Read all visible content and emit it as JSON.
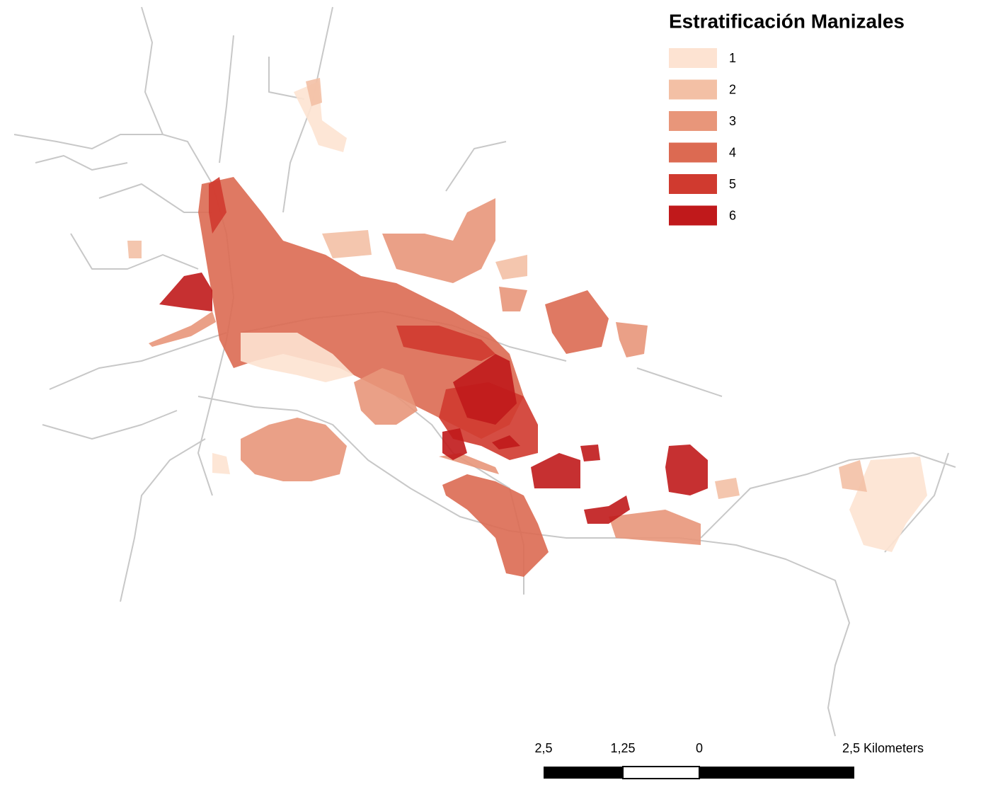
{
  "legend": {
    "title": "Estratificación Manizales",
    "items": [
      {
        "label": "1",
        "color": "#fde3d2"
      },
      {
        "label": "2",
        "color": "#f3c0a5"
      },
      {
        "label": "3",
        "color": "#e8967a"
      },
      {
        "label": "4",
        "color": "#dc6a52"
      },
      {
        "label": "5",
        "color": "#d03a2f"
      },
      {
        "label": "6",
        "color": "#c0191b"
      }
    ]
  },
  "scale_bar": {
    "labels": [
      "2,5",
      "1,25",
      "0",
      "2,5 Kilometers"
    ]
  }
}
